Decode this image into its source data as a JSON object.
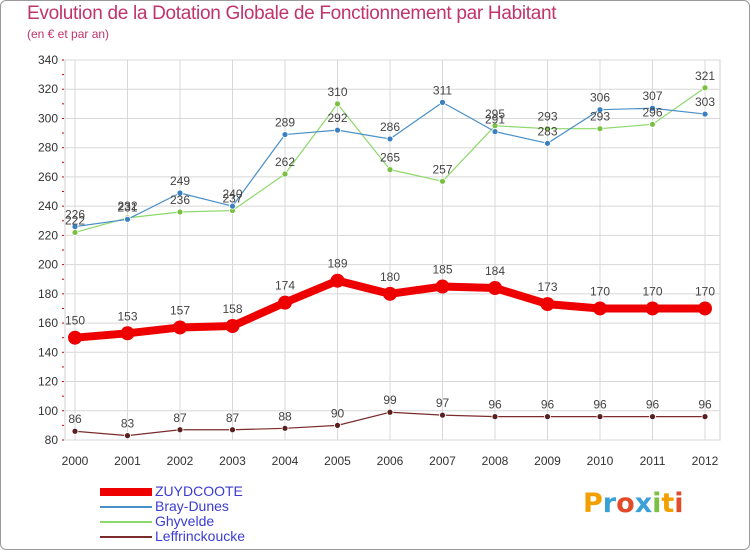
{
  "title": "Evolution de la Dotation Globale de Fonctionnement par Habitant",
  "subtitle": "(en € et par an)",
  "logo": {
    "text": "Proxiti",
    "colors": [
      "#f2a000",
      "#3aa0d8",
      "#e14b2a",
      "#3aa0d8",
      "#7ac143",
      "#f2a000",
      "#e14b2a"
    ]
  },
  "chart_data": {
    "type": "line",
    "x": [
      "2000",
      "2001",
      "2002",
      "2003",
      "2004",
      "2005",
      "2006",
      "2007",
      "2008",
      "2009",
      "2010",
      "2011",
      "2012"
    ],
    "ylim": [
      80,
      340
    ],
    "yticks": [
      80,
      100,
      120,
      140,
      160,
      180,
      200,
      220,
      240,
      260,
      280,
      300,
      320,
      340
    ],
    "grid": true,
    "legend_position": "bottom-left",
    "series": [
      {
        "name": "Leffrinckoucke",
        "color": "#7a2b2b",
        "point_color": "#5a1f1f",
        "width": 1.2,
        "radius": 3,
        "values": [
          86,
          83,
          87,
          87,
          88,
          90,
          99,
          97,
          96,
          96,
          96,
          96,
          96
        ]
      },
      {
        "name": "Ghyvelde",
        "color": "#8cd86a",
        "point_color": "#7ac143",
        "width": 1.2,
        "radius": 3,
        "values": [
          222,
          232,
          236,
          237,
          262,
          310,
          265,
          257,
          295,
          293,
          293,
          296,
          321
        ]
      },
      {
        "name": "Bray-Dunes",
        "color": "#4a90c8",
        "point_color": "#3a7fc0",
        "width": 1.2,
        "radius": 3,
        "values": [
          226,
          231,
          249,
          240,
          289,
          292,
          286,
          311,
          291,
          283,
          306,
          307,
          303
        ]
      },
      {
        "name": "ZUYDCOOTE",
        "color": "#ee0000",
        "point_color": "#ee0000",
        "width": 8,
        "radius": 7,
        "values": [
          150,
          153,
          157,
          158,
          174,
          189,
          180,
          185,
          184,
          173,
          170,
          170,
          170
        ]
      }
    ]
  }
}
